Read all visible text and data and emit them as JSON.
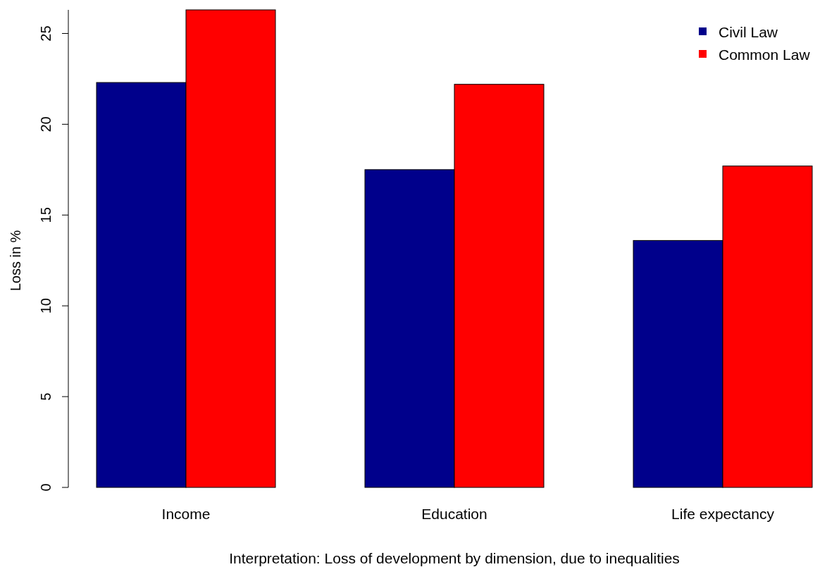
{
  "chart_data": {
    "type": "bar",
    "ylabel": "Loss in %",
    "categories": [
      "Income",
      "Education",
      "Life expectancy"
    ],
    "series": [
      {
        "name": "Civil Law",
        "color": "#00008b",
        "values": [
          22.3,
          17.5,
          13.6
        ]
      },
      {
        "name": "Common Law",
        "color": "#ff0000",
        "values": [
          26.3,
          22.2,
          17.7
        ]
      }
    ],
    "ylim": [
      0,
      26.3
    ],
    "yticks": [
      0,
      5,
      10,
      15,
      20,
      25
    ],
    "legend": "top right",
    "grid": false,
    "annotations": [
      "Interpretation: Loss of development by dimension, due to inequalities"
    ]
  }
}
